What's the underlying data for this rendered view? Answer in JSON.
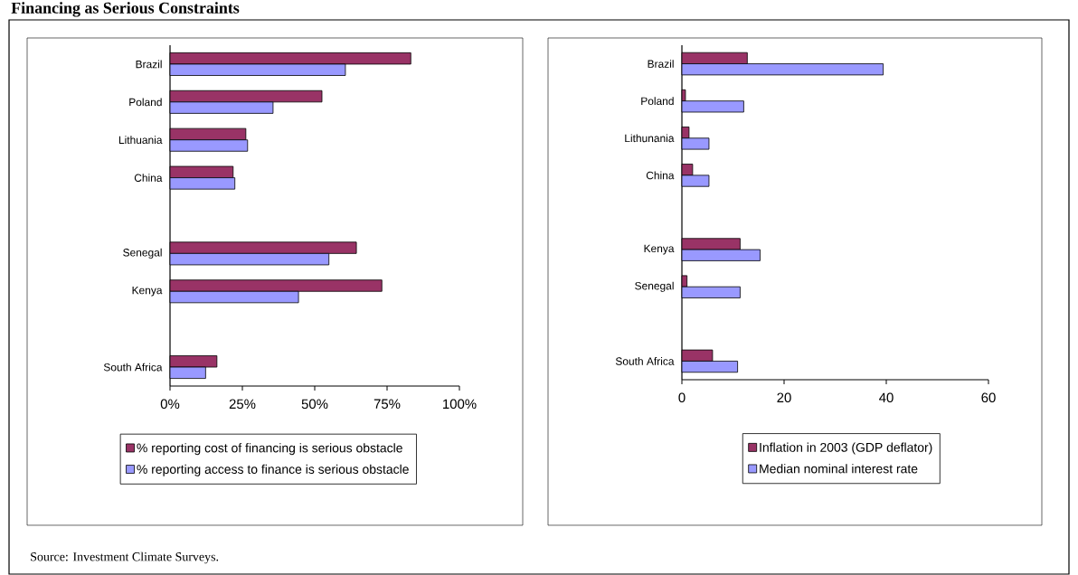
{
  "chart_data": [
    {
      "type": "bar",
      "orientation": "horizontal",
      "title": "Financing as Serious Constraints",
      "annotations": [
        "Source: Investment Climate Surveys."
      ],
      "categories": [
        "Brazil",
        "Poland",
        "Lithuania",
        "China",
        null,
        "Senegal",
        "Kenya",
        null,
        "South Africa"
      ],
      "series": [
        {
          "name": "% reporting cost of financing is serious obstacle",
          "color": "#993366",
          "values": [
            83.2,
            52.5,
            26.2,
            21.8,
            null,
            64.4,
            73.2,
            null,
            16.2
          ]
        },
        {
          "name": "% reporting access to finance is serious obstacle",
          "color": "#9999ff",
          "values": [
            60.6,
            35.6,
            26.8,
            22.4,
            null,
            54.9,
            44.4,
            null,
            12.3
          ]
        }
      ],
      "xlim": [
        0,
        100
      ],
      "xticks": [
        {
          "value": 0,
          "label": "0%"
        },
        {
          "value": 25,
          "label": "25%"
        },
        {
          "value": 50,
          "label": "50%"
        },
        {
          "value": 75,
          "label": "75%"
        },
        {
          "value": 100,
          "label": "100%"
        }
      ],
      "legend": "bottom",
      "grid": false
    },
    {
      "type": "bar",
      "orientation": "horizontal",
      "categories": [
        "Brazil",
        "Poland",
        "Lithunania",
        "China",
        null,
        "Kenya",
        "Senegal",
        null,
        "South Africa"
      ],
      "series": [
        {
          "name": "Inflation in 2003 (GDP deflator)",
          "color": "#993366",
          "values": [
            12.8,
            0.7,
            1.4,
            2.1,
            null,
            11.4,
            1.0,
            null,
            6.0
          ]
        },
        {
          "name": "Median nominal interest rate",
          "color": "#9999ff",
          "values": [
            39.4,
            12.1,
            5.3,
            5.3,
            null,
            15.3,
            11.4,
            null,
            10.9
          ]
        }
      ],
      "xlim": [
        0,
        60
      ],
      "xticks": [
        0,
        20,
        40,
        60
      ],
      "legend": "bottom",
      "grid": false
    }
  ]
}
